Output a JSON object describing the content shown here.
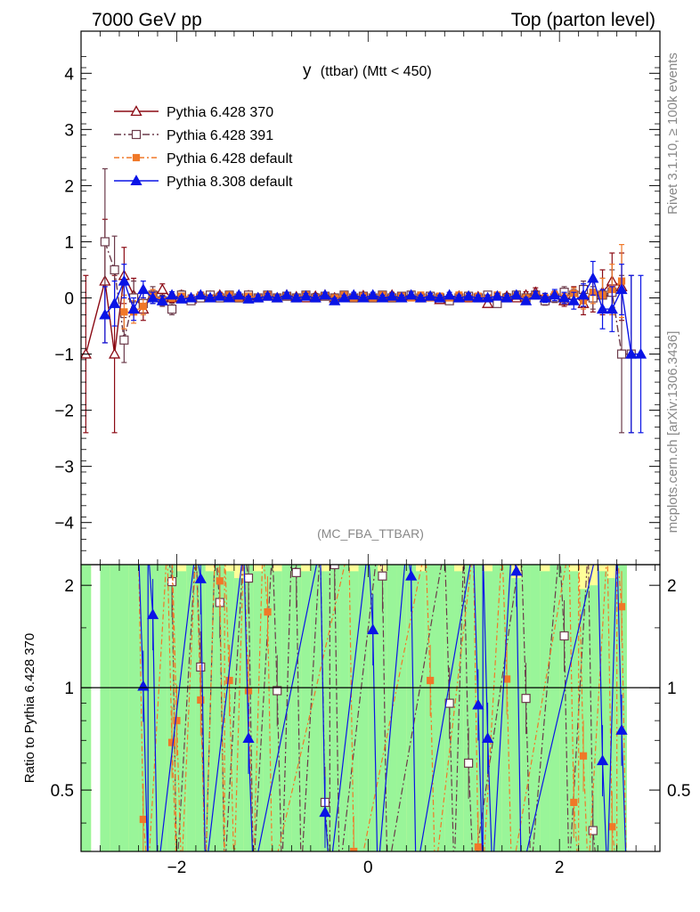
{
  "header": {
    "left": "7000 GeV pp",
    "right": "Top (parton level)"
  },
  "side": {
    "version": "Rivet 3.1.10, ≥ 100k events",
    "source": "mcplots.cern.ch [arXiv:1306.3436]"
  },
  "chart_data": [
    {
      "type": "line",
      "panel": "main",
      "title": "y (ttbar) (Mtt < 450)",
      "title_main": "y",
      "title_sub": "(ttbar) (Mtt < 450)",
      "analysis_label": "(MC_FBA_TTBAR)",
      "xlim": [
        -3,
        3.05
      ],
      "ylim": [
        -4.75,
        4.75
      ],
      "yticks": [
        -4,
        -3,
        -2,
        -1,
        0,
        1,
        2,
        3,
        4
      ],
      "ytick_labels": [
        "−4",
        "−3",
        "−2",
        "−1",
        "0",
        "1",
        "2",
        "3",
        "4"
      ],
      "legend_placement": "top-left",
      "series": [
        {
          "name": "Pythia 6.428 370",
          "color": "#8b0a14",
          "marker": "open-triangle",
          "x": [
            -2.95,
            -2.75,
            -2.65,
            -2.55,
            -2.45,
            -2.35,
            -2.25,
            -2.15,
            -2.05,
            -1.95,
            -1.85,
            -1.75,
            -1.65,
            -1.55,
            -1.45,
            -1.35,
            -1.25,
            -1.15,
            -1.05,
            -0.95,
            -0.85,
            -0.75,
            -0.65,
            -0.55,
            -0.45,
            -0.35,
            -0.25,
            -0.15,
            -0.05,
            0.05,
            0.15,
            0.25,
            0.35,
            0.45,
            0.55,
            0.65,
            0.75,
            0.85,
            0.95,
            1.05,
            1.15,
            1.25,
            1.35,
            1.45,
            1.55,
            1.65,
            1.75,
            1.85,
            1.95,
            2.05,
            2.15,
            2.25,
            2.35,
            2.45,
            2.55,
            2.65
          ],
          "y": [
            -1.0,
            0.3,
            -1.0,
            0.4,
            0.05,
            -0.2,
            0.05,
            0.15,
            0.0,
            0.05,
            -0.02,
            0.0,
            0.03,
            0.05,
            0.0,
            0.02,
            0.04,
            0.0,
            0.03,
            0.0,
            0.05,
            0.02,
            0.0,
            0.03,
            0.05,
            0.0,
            0.02,
            0.0,
            0.04,
            0.0,
            0.02,
            0.05,
            0.0,
            0.03,
            0.0,
            0.02,
            -0.03,
            0.0,
            0.03,
            0.0,
            0.02,
            -0.1,
            0.0,
            0.03,
            0.0,
            0.05,
            0.1,
            0.0,
            0.02,
            -0.05,
            0.05,
            -0.1,
            0.05,
            0.1,
            0.3,
            0.2
          ],
          "err": [
            1.4,
            1.1,
            1.4,
            0.5,
            0.3,
            0.2,
            0.1,
            0.1,
            0.08,
            0.06,
            0.05,
            0.05,
            0.05,
            0.05,
            0.05,
            0.05,
            0.05,
            0.05,
            0.05,
            0.05,
            0.05,
            0.05,
            0.05,
            0.05,
            0.05,
            0.05,
            0.05,
            0.05,
            0.05,
            0.05,
            0.05,
            0.05,
            0.05,
            0.05,
            0.05,
            0.05,
            0.05,
            0.05,
            0.05,
            0.05,
            0.05,
            0.05,
            0.05,
            0.05,
            0.05,
            0.06,
            0.08,
            0.08,
            0.1,
            0.1,
            0.15,
            0.2,
            0.3,
            0.4,
            0.5,
            0.6
          ]
        },
        {
          "name": "Pythia 6.428 391",
          "color": "#6b3a4a",
          "marker": "open-square",
          "x": [
            -2.75,
            -2.65,
            -2.55,
            -2.45,
            -2.35,
            -2.25,
            -2.15,
            -2.05,
            -1.95,
            -1.85,
            -1.75,
            -1.65,
            -1.55,
            -1.45,
            -1.35,
            -1.25,
            -1.15,
            -1.05,
            -0.95,
            -0.85,
            -0.75,
            -0.65,
            -0.55,
            -0.45,
            -0.35,
            -0.25,
            -0.15,
            -0.05,
            0.05,
            0.15,
            0.25,
            0.35,
            0.45,
            0.55,
            0.65,
            0.75,
            0.85,
            0.95,
            1.05,
            1.15,
            1.25,
            1.35,
            1.45,
            1.55,
            1.65,
            1.75,
            1.85,
            1.95,
            2.05,
            2.15,
            2.25,
            2.35,
            2.45,
            2.55,
            2.65,
            2.75
          ],
          "y": [
            1.0,
            0.5,
            -0.75,
            0.0,
            -0.1,
            0.05,
            -0.05,
            -0.2,
            0.05,
            -0.05,
            0.0,
            0.05,
            0.0,
            0.05,
            0.0,
            0.05,
            0.0,
            0.05,
            0.0,
            0.03,
            0.0,
            0.05,
            0.0,
            0.03,
            0.0,
            0.05,
            0.0,
            0.03,
            0.0,
            0.05,
            0.0,
            0.03,
            0.05,
            0.0,
            0.03,
            0.0,
            -0.05,
            0.0,
            0.03,
            0.0,
            0.05,
            -0.1,
            0.0,
            0.05,
            0.0,
            0.05,
            -0.05,
            0.0,
            0.1,
            0.05,
            0.15,
            0.0,
            0.05,
            0.1,
            -1.0,
            -1.0
          ],
          "err": [
            1.3,
            0.6,
            0.4,
            0.3,
            0.2,
            0.15,
            0.1,
            0.1,
            0.08,
            0.06,
            0.05,
            0.05,
            0.05,
            0.05,
            0.05,
            0.05,
            0.05,
            0.05,
            0.05,
            0.05,
            0.05,
            0.05,
            0.05,
            0.05,
            0.05,
            0.05,
            0.05,
            0.05,
            0.05,
            0.05,
            0.05,
            0.05,
            0.05,
            0.05,
            0.05,
            0.05,
            0.05,
            0.05,
            0.05,
            0.05,
            0.05,
            0.05,
            0.05,
            0.05,
            0.05,
            0.06,
            0.08,
            0.08,
            0.1,
            0.1,
            0.15,
            0.2,
            0.3,
            0.4,
            1.4,
            1.4
          ]
        },
        {
          "name": "Pythia 6.428 default",
          "color": "#f07828",
          "marker": "filled-square",
          "x": [
            -2.55,
            -2.45,
            -2.35,
            -2.25,
            -2.15,
            -2.05,
            -1.95,
            -1.85,
            -1.75,
            -1.65,
            -1.55,
            -1.45,
            -1.35,
            -1.25,
            -1.15,
            -1.05,
            -0.95,
            -0.85,
            -0.75,
            -0.65,
            -0.55,
            -0.45,
            -0.35,
            -0.25,
            -0.15,
            -0.05,
            0.05,
            0.15,
            0.25,
            0.35,
            0.45,
            0.55,
            0.65,
            0.75,
            0.85,
            0.95,
            1.05,
            1.15,
            1.25,
            1.35,
            1.45,
            1.55,
            1.65,
            1.75,
            1.85,
            1.95,
            2.05,
            2.15,
            2.25,
            2.35,
            2.45,
            2.55,
            2.65
          ],
          "y": [
            -0.25,
            -0.25,
            -0.15,
            0.05,
            -0.05,
            0.0,
            0.03,
            0.0,
            0.05,
            0.0,
            0.03,
            0.05,
            0.0,
            0.03,
            0.0,
            0.05,
            0.0,
            0.03,
            0.0,
            0.05,
            0.0,
            0.03,
            0.0,
            0.05,
            0.0,
            0.03,
            0.0,
            0.05,
            0.0,
            0.03,
            0.0,
            0.05,
            0.0,
            0.03,
            0.0,
            0.05,
            0.0,
            0.03,
            0.0,
            0.05,
            0.0,
            0.03,
            0.0,
            0.05,
            0.0,
            0.05,
            0.0,
            0.08,
            -0.05,
            0.1,
            0.05,
            0.15,
            0.3
          ],
          "err": [
            0.3,
            0.2,
            0.15,
            0.1,
            0.08,
            0.06,
            0.05,
            0.05,
            0.05,
            0.05,
            0.05,
            0.05,
            0.05,
            0.05,
            0.05,
            0.05,
            0.05,
            0.05,
            0.05,
            0.05,
            0.05,
            0.05,
            0.05,
            0.05,
            0.05,
            0.05,
            0.05,
            0.05,
            0.05,
            0.05,
            0.05,
            0.05,
            0.05,
            0.05,
            0.05,
            0.05,
            0.05,
            0.05,
            0.05,
            0.05,
            0.05,
            0.05,
            0.05,
            0.05,
            0.06,
            0.06,
            0.08,
            0.1,
            0.15,
            0.2,
            0.3,
            0.45,
            0.65
          ]
        },
        {
          "name": "Pythia 8.308 default",
          "color": "#0a14e6",
          "marker": "filled-triangle",
          "x": [
            -2.75,
            -2.65,
            -2.55,
            -2.45,
            -2.35,
            -2.25,
            -2.15,
            -2.05,
            -1.95,
            -1.85,
            -1.75,
            -1.65,
            -1.55,
            -1.45,
            -1.35,
            -1.25,
            -1.15,
            -1.05,
            -0.95,
            -0.85,
            -0.75,
            -0.65,
            -0.55,
            -0.45,
            -0.35,
            -0.25,
            -0.15,
            -0.05,
            0.05,
            0.15,
            0.25,
            0.35,
            0.45,
            0.55,
            0.65,
            0.75,
            0.85,
            0.95,
            1.05,
            1.15,
            1.25,
            1.35,
            1.45,
            1.55,
            1.65,
            1.75,
            1.85,
            1.95,
            2.05,
            2.15,
            2.25,
            2.35,
            2.45,
            2.55,
            2.65,
            2.75,
            2.85
          ],
          "y": [
            -0.3,
            -0.1,
            0.3,
            -0.2,
            0.15,
            0.0,
            -0.05,
            0.05,
            -0.02,
            0.0,
            0.05,
            0.0,
            0.03,
            0.0,
            0.05,
            -0.02,
            0.0,
            0.03,
            0.0,
            0.05,
            0.0,
            0.03,
            0.0,
            0.05,
            -0.05,
            0.0,
            0.05,
            0.0,
            0.05,
            0.0,
            0.03,
            0.0,
            0.05,
            0.0,
            0.03,
            0.0,
            0.05,
            0.0,
            0.03,
            0.0,
            0.0,
            0.03,
            0.0,
            0.05,
            -0.05,
            0.05,
            0.0,
            0.05,
            0.0,
            -0.05,
            0.05,
            0.35,
            -0.2,
            -0.2,
            0.15,
            -1.0,
            -1.0
          ],
          "err": [
            0.5,
            0.4,
            0.3,
            0.2,
            0.15,
            0.1,
            0.08,
            0.06,
            0.05,
            0.05,
            0.05,
            0.05,
            0.05,
            0.05,
            0.05,
            0.05,
            0.05,
            0.05,
            0.05,
            0.05,
            0.05,
            0.05,
            0.05,
            0.05,
            0.05,
            0.05,
            0.05,
            0.05,
            0.05,
            0.05,
            0.05,
            0.05,
            0.05,
            0.05,
            0.05,
            0.05,
            0.05,
            0.05,
            0.05,
            0.05,
            0.05,
            0.05,
            0.05,
            0.05,
            0.06,
            0.06,
            0.08,
            0.1,
            0.1,
            0.15,
            0.2,
            0.3,
            0.35,
            0.4,
            0.45,
            1.4,
            1.4
          ]
        }
      ]
    },
    {
      "type": "line",
      "panel": "ratio",
      "ylabel": "Ratio to Pythia 6.428 370",
      "xlim": [
        -3,
        3.05
      ],
      "ylim": [
        0.33,
        2.3
      ],
      "xticks": [
        -2,
        0,
        2
      ],
      "xtick_labels": [
        "−2",
        "0",
        "2"
      ],
      "yticks": [
        0.5,
        1,
        2
      ],
      "ytick_labels": [
        "0.5",
        "1",
        "2"
      ],
      "reference_line": 1,
      "band": {
        "x": [
          -2.95,
          -2.85,
          -2.75,
          -2.65,
          -2.55,
          -2.45,
          -2.35,
          -2.25,
          -2.15,
          -2.05,
          -1.95,
          -1.85,
          -1.75,
          -1.65,
          -1.55,
          -1.45,
          -1.35,
          -1.25,
          -1.15,
          -1.05,
          -0.95,
          -0.85,
          -0.75,
          -0.65,
          -0.55,
          -0.45,
          -0.35,
          -0.25,
          -0.15,
          -0.05,
          0.05,
          0.15,
          0.25,
          0.35,
          0.45,
          0.55,
          0.65,
          0.75,
          0.85,
          0.95,
          1.05,
          1.15,
          1.25,
          1.35,
          1.45,
          1.55,
          1.65,
          1.75,
          1.85,
          1.95,
          2.05,
          2.15,
          2.25,
          2.35,
          2.45,
          2.55,
          2.65
        ],
        "green_high": [
          2.3,
          0.0,
          2.3,
          2.3,
          2.3,
          2.3,
          2.3,
          2.3,
          2.3,
          2.3,
          2.2,
          2.3,
          2.3,
          2.2,
          2.3,
          2.2,
          2.1,
          2.3,
          2.2,
          2.3,
          2.2,
          2.3,
          2.3,
          2.2,
          2.3,
          2.2,
          2.3,
          2.3,
          2.2,
          2.3,
          2.3,
          2.2,
          2.3,
          2.3,
          2.3,
          2.2,
          2.3,
          2.3,
          2.3,
          2.2,
          2.3,
          2.3,
          2.2,
          2.3,
          2.3,
          2.1,
          2.3,
          2.3,
          2.2,
          2.3,
          2.3,
          2.2,
          1.95,
          2.0,
          2.2,
          2.1,
          2.3
        ],
        "yellow_high": [
          2.3,
          0.0,
          2.3,
          2.3,
          2.3,
          2.3,
          2.3,
          2.3,
          2.3,
          2.3,
          2.3,
          2.3,
          2.3,
          2.3,
          2.3,
          2.3,
          2.3,
          2.3,
          2.3,
          2.3,
          2.3,
          2.3,
          2.3,
          2.3,
          2.3,
          2.3,
          2.3,
          2.3,
          2.3,
          2.3,
          2.3,
          2.3,
          2.3,
          2.3,
          2.3,
          2.3,
          2.3,
          2.3,
          2.3,
          2.3,
          2.3,
          2.3,
          2.3,
          2.3,
          2.3,
          2.3,
          2.3,
          2.3,
          2.3,
          2.3,
          2.3,
          2.3,
          2.3,
          2.3,
          2.3,
          2.3,
          2.3
        ]
      },
      "series": [
        {
          "name": "Pythia 6.428 391",
          "color": "#6b3a4a",
          "marker": "open-square",
          "x": [
            -2.05,
            -1.75,
            -1.55,
            -1.25,
            -0.95,
            -0.75,
            -0.45,
            -0.35,
            0.15,
            0.85,
            1.05,
            1.65,
            2.05,
            2.35
          ],
          "y": [
            2.05,
            1.15,
            1.78,
            2.1,
            0.98,
            2.18,
            0.46,
            2.3,
            2.13,
            0.9,
            0.6,
            0.93,
            1.42,
            0.38
          ]
        },
        {
          "name": "Pythia 6.428 default",
          "color": "#f07828",
          "marker": "filled-square",
          "x": [
            -2.35,
            -2.05,
            -2.0,
            -1.75,
            -1.55,
            -1.45,
            -1.25,
            -1.05,
            -0.15,
            0.65,
            1.15,
            1.45,
            2.15,
            2.25,
            2.55,
            2.65
          ],
          "y": [
            0.41,
            0.69,
            0.8,
            0.92,
            2.06,
            1.05,
            0.98,
            1.67,
            0.33,
            1.05,
            0.34,
            1.06,
            0.46,
            0.63,
            0.39,
            1.73
          ]
        },
        {
          "name": "Pythia 8.308 default",
          "color": "#0a14e6",
          "marker": "filled-triangle",
          "x": [
            -2.35,
            -2.25,
            -1.75,
            -1.25,
            -0.45,
            0.05,
            0.45,
            1.15,
            1.25,
            1.55,
            2.45,
            2.65
          ],
          "y": [
            1.01,
            1.64,
            2.09,
            0.71,
            0.43,
            1.48,
            2.13,
            0.89,
            0.71,
            2.2,
            0.61,
            0.75
          ]
        }
      ]
    }
  ]
}
